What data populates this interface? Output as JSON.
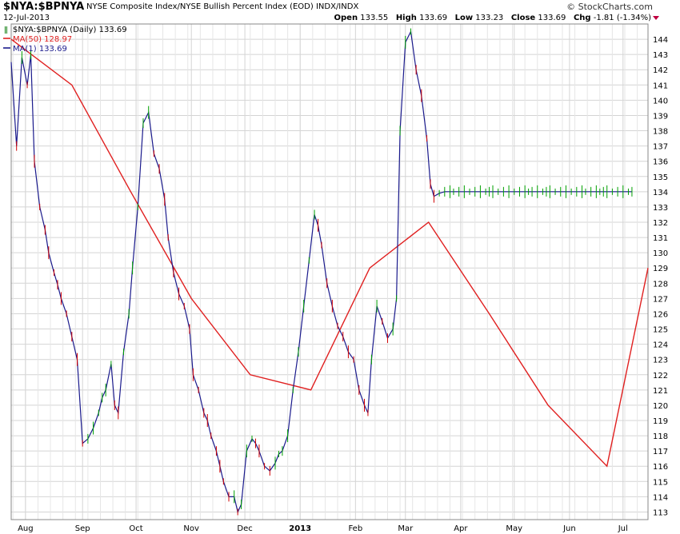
{
  "header": {
    "ticker": "$NYA:$BPNYA",
    "description": "NYSE Composite Index/NYSE Bullish Percent Index (EOD)  INDX/INDX",
    "date": "12-Jul-2013",
    "credit": "© StockCharts.com",
    "open_label": "Open",
    "open": "133.55",
    "high_label": "High",
    "high": "133.69",
    "low_label": "Low",
    "low": "133.23",
    "close_label": "Close",
    "close": "133.69",
    "chg_label": "Chg",
    "chg": "-1.81 (-1.34%)"
  },
  "legend": {
    "price": "$NYA:$BPNYA (Daily) 133.69",
    "ma50": "MA(50) 128.97",
    "ma1": "MA(1) 133.69"
  },
  "colors": {
    "price_line": "#1a1a8c",
    "ma50_line": "#e02020",
    "grid": "#d4d4d4",
    "up_bar": "#00a000",
    "down_bar": "#d00000"
  },
  "chart_data": {
    "type": "line",
    "title": "$NYA:$BPNYA",
    "xlabel": "",
    "ylabel": "",
    "ylim": [
      112.5,
      145
    ],
    "y_ticks": [
      113,
      114,
      115,
      116,
      117,
      118,
      119,
      120,
      121,
      122,
      123,
      124,
      125,
      126,
      127,
      128,
      129,
      130,
      131,
      132,
      133,
      134,
      135,
      136,
      137,
      138,
      139,
      140,
      141,
      142,
      143,
      144
    ],
    "x_ticks": [
      {
        "label": "Aug",
        "day": 8
      },
      {
        "label": "Sep",
        "day": 40
      },
      {
        "label": "Oct",
        "day": 70
      },
      {
        "label": "Nov",
        "day": 101
      },
      {
        "label": "Dec",
        "day": 131
      },
      {
        "label": "2013",
        "day": 162
      },
      {
        "label": "Feb",
        "day": 193
      },
      {
        "label": "Mar",
        "day": 221
      },
      {
        "label": "Apr",
        "day": 252
      },
      {
        "label": "May",
        "day": 282
      },
      {
        "label": "Jun",
        "day": 313
      },
      {
        "label": "Jul",
        "day": 343
      }
    ],
    "x_domain": [
      0,
      357
    ],
    "series": [
      {
        "name": "$NYA:$BPNYA (Daily)",
        "x": [
          0,
          3,
          6,
          9,
          11,
          13,
          16,
          19,
          21,
          24,
          26,
          28,
          31,
          34,
          37,
          40,
          43,
          46,
          49,
          51,
          53,
          56,
          58,
          60,
          63,
          66,
          68,
          71,
          74,
          77,
          80,
          83,
          86,
          88,
          91,
          94,
          97,
          100,
          102,
          105,
          108,
          110,
          112,
          115,
          117,
          119,
          122,
          125,
          127,
          129,
          132,
          135,
          137,
          139,
          142,
          145,
          148,
          150,
          152,
          155,
          158,
          161,
          164,
          167,
          170,
          172,
          174,
          177,
          180,
          183,
          186,
          189,
          192,
          195,
          198,
          200,
          202,
          205,
          208,
          211,
          214,
          216,
          218,
          221,
          224,
          227,
          230,
          233,
          235,
          237,
          240,
          243,
          246,
          248,
          251,
          254,
          257,
          260,
          263,
          266,
          268,
          270,
          273,
          276,
          279,
          282,
          285,
          288,
          290,
          292,
          295,
          298,
          300,
          302,
          305,
          308,
          311,
          314,
          317,
          320,
          322,
          325,
          328,
          330,
          332,
          334,
          337,
          340,
          343,
          346,
          348,
          351,
          354
        ],
        "values": [
          142.5,
          137,
          142.8,
          141,
          143,
          136,
          133,
          131.5,
          130,
          128.7,
          127.9,
          127,
          126,
          124.5,
          123,
          117.5,
          117.8,
          118.5,
          119.5,
          120.5,
          121,
          122.7,
          120,
          119.5,
          123.5,
          126,
          129,
          133,
          138.5,
          139.2,
          136.5,
          135.5,
          133.5,
          131,
          128.7,
          127.3,
          126.5,
          125,
          122,
          121,
          119.5,
          119,
          118,
          117,
          116,
          115,
          114,
          114,
          113,
          113.5,
          117,
          117.8,
          117.5,
          117,
          116,
          115.7,
          116.2,
          116.8,
          117,
          118,
          121,
          123.5,
          126.5,
          129.5,
          132.5,
          131.8,
          130.5,
          128,
          126.5,
          125.2,
          124.5,
          123.5,
          123,
          121,
          120,
          119.5,
          123,
          126.5,
          125.5,
          124.4,
          125,
          127,
          138,
          143.8,
          144.5,
          142,
          140.3,
          137.5,
          134.5,
          133.7,
          133.9,
          134,
          134,
          134,
          134,
          134,
          134,
          134,
          134,
          134,
          134,
          134,
          134,
          134,
          134,
          134,
          134,
          134,
          134,
          134,
          134,
          134,
          134,
          134,
          134,
          134,
          134,
          134,
          134,
          134,
          134,
          134,
          134,
          134,
          134,
          134,
          134,
          134,
          134,
          134,
          134,
          134,
          134
        ]
      },
      {
        "name": "MA(50)",
        "x": [
          0,
          34,
          67,
          101,
          134,
          168,
          201,
          234,
          268,
          301,
          334,
          357
        ],
        "values": [
          144,
          141,
          134,
          127,
          122,
          121,
          129,
          132,
          126,
          120,
          116,
          129
        ]
      }
    ]
  }
}
